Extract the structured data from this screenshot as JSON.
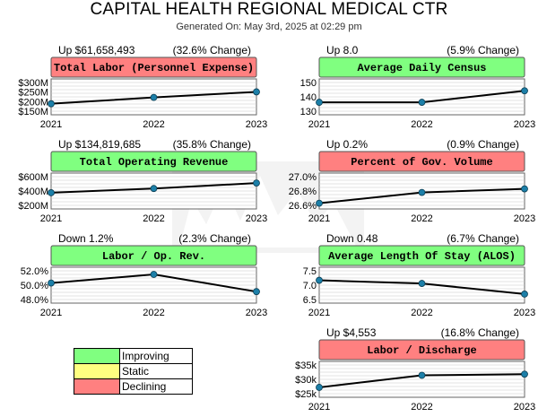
{
  "page": {
    "title": "CAPITAL HEALTH REGIONAL MEDICAL CTR",
    "subtitle": "Generated On: May 3rd, 2025 at 02:29 pm"
  },
  "colors": {
    "improving": "#80ff80",
    "static": "#ffff80",
    "declining": "#ff8080",
    "line": "#000000",
    "marker": "#1c7fa8",
    "grid": "#c8c8c8"
  },
  "legend": [
    {
      "label": "Improving",
      "color": "#80ff80"
    },
    {
      "label": "Static",
      "color": "#ffff80"
    },
    {
      "label": "Declining",
      "color": "#ff8080"
    }
  ],
  "chart_data": [
    {
      "type": "line",
      "title": "Total Labor (Personnel Expense)",
      "status": "declining",
      "summary_left": "Up $61,658,493",
      "summary_right": "(32.6% Change)",
      "x": [
        "2021",
        "2022",
        "2023"
      ],
      "values": [
        189,
        222,
        251
      ],
      "yticks": [
        "$300M",
        "$250M",
        "$200M",
        "$150M"
      ],
      "ylim": [
        150,
        300
      ],
      "grid": true
    },
    {
      "type": "line",
      "title": "Average Daily Census",
      "status": "improving",
      "summary_left": "Up 8.0",
      "summary_right": "(5.9% Change)",
      "x": [
        "2021",
        "2022",
        "2023"
      ],
      "values": [
        136.2,
        136.2,
        144.2
      ],
      "yticks": [
        "150",
        "140",
        "130"
      ],
      "ylim": [
        130,
        150
      ],
      "grid": true
    },
    {
      "type": "line",
      "title": "Total Operating Revenue",
      "status": "improving",
      "summary_left": "Up $134,819,685",
      "summary_right": "(35.8% Change)",
      "x": [
        "2021",
        "2022",
        "2023"
      ],
      "values": [
        376,
        435,
        511
      ],
      "yticks": [
        "$600M",
        "$400M",
        "$200M"
      ],
      "ylim": [
        200,
        600
      ],
      "grid": true
    },
    {
      "type": "line",
      "title": "Percent of Gov. Volume",
      "status": "declining",
      "summary_left": "Up 0.2%",
      "summary_right": "(0.9% Change)",
      "x": [
        "2021",
        "2022",
        "2023"
      ],
      "values": [
        26.63,
        26.78,
        26.83
      ],
      "yticks": [
        "27.0%",
        "26.8%",
        "26.6%"
      ],
      "ylim": [
        26.6,
        27.0
      ],
      "grid": true
    },
    {
      "type": "line",
      "title": "Labor / Op. Rev.",
      "status": "improving",
      "summary_left": "Down 1.2%",
      "summary_right": "(2.3% Change)",
      "x": [
        "2021",
        "2022",
        "2023"
      ],
      "values": [
        50.3,
        51.5,
        49.1
      ],
      "yticks": [
        "52.0%",
        "50.0%",
        "48.0%"
      ],
      "ylim": [
        48.0,
        52.0
      ],
      "grid": true
    },
    {
      "type": "line",
      "title": "Average Length Of Stay (ALOS)",
      "status": "improving",
      "summary_left": "Down 0.48",
      "summary_right": "(6.7% Change)",
      "x": [
        "2021",
        "2022",
        "2023"
      ],
      "values": [
        7.17,
        7.06,
        6.69
      ],
      "yticks": [
        "7.5",
        "7.0",
        "6.5"
      ],
      "ylim": [
        6.5,
        7.5
      ],
      "grid": true
    },
    {
      "type": "line",
      "title": "Labor / Discharge",
      "status": "declining",
      "summary_left": "Up $4,553",
      "summary_right": "(16.8% Change)",
      "x": [
        "2021",
        "2022",
        "2023"
      ],
      "values": [
        27.2,
        31.4,
        31.8
      ],
      "yticks": [
        "$35k",
        "$30k",
        "$25k"
      ],
      "ylim": [
        25,
        35
      ],
      "grid": true
    }
  ]
}
